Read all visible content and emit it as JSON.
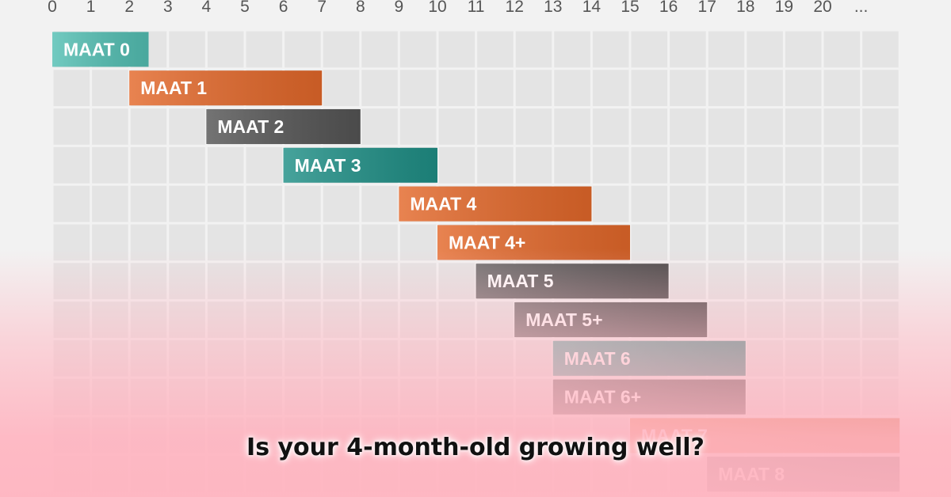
{
  "chart_data": {
    "type": "bar",
    "orientation": "horizontal-range",
    "x_ticks": [
      "0",
      "1",
      "2",
      "3",
      "4",
      "5",
      "6",
      "7",
      "8",
      "9",
      "10",
      "11",
      "12",
      "13",
      "14",
      "15",
      "16",
      "17",
      "18",
      "19",
      "20",
      "..."
    ],
    "xlim": [
      0,
      22
    ],
    "grid": true,
    "bars": [
      {
        "label": "MAAT 0",
        "start": 0,
        "end": 2.5,
        "color": "#53bfb3"
      },
      {
        "label": "MAAT 1",
        "start": 2,
        "end": 7,
        "color": "#e3682a"
      },
      {
        "label": "MAAT 2",
        "start": 4,
        "end": 8,
        "color": "#555555"
      },
      {
        "label": "MAAT 3",
        "start": 6,
        "end": 10,
        "color": "#1f8f86"
      },
      {
        "label": "MAAT 4",
        "start": 9,
        "end": 14,
        "color": "#e3682a"
      },
      {
        "label": "MAAT 4+",
        "start": 10,
        "end": 15,
        "color": "#e3682a"
      },
      {
        "label": "MAAT 5",
        "start": 11,
        "end": 16,
        "color": "#555555"
      },
      {
        "label": "MAAT 5+",
        "start": 12,
        "end": 17,
        "color": "#555555"
      },
      {
        "label": "MAAT 6",
        "start": 13,
        "end": 18,
        "color": "#3f9c95"
      },
      {
        "label": "MAAT 6+",
        "start": 13,
        "end": 18,
        "color": "#555555"
      },
      {
        "label": "MAAT 7",
        "start": 15,
        "end": 22,
        "color": "#e3682a"
      },
      {
        "label": "MAAT 8",
        "start": 17,
        "end": 22,
        "color": "#555555"
      }
    ]
  },
  "caption": "Is your 4-month-old growing well?"
}
